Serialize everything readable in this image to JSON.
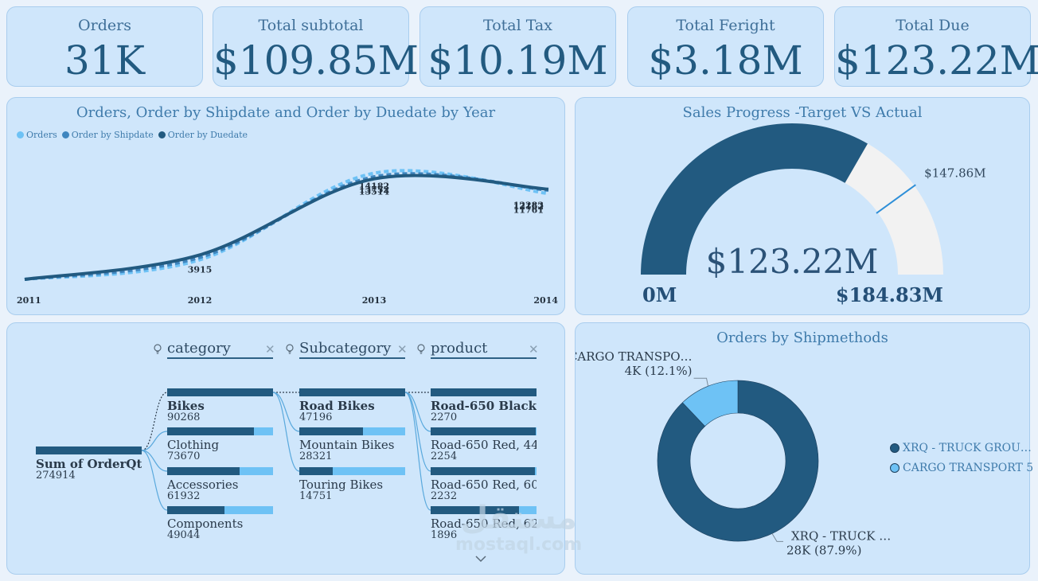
{
  "kpis": [
    {
      "title": "Orders",
      "value": "31K"
    },
    {
      "title": "Total subtotal",
      "value": "$109.85M"
    },
    {
      "title": "Total Tax",
      "value": "$10.19M"
    },
    {
      "title": "Total Feright",
      "value": "$3.18M"
    },
    {
      "title": "Total Due",
      "value": "$123.22M"
    }
  ],
  "line_panel": {
    "title": "Orders, Order by Shipdate and Order by Duedate by Year"
  },
  "gauge_panel": {
    "title": "Sales Progress -Target VS Actual"
  },
  "decomp_panel": {
    "headers": [
      "category",
      "Subcategory",
      "product"
    ],
    "root": {
      "name": "Sum of OrderQty",
      "value": "274914"
    }
  },
  "donut_panel": {
    "title": "Orders by Shipmethods"
  },
  "watermark": {
    "arabic": "مستقل",
    "latin": "mostaql.com"
  },
  "chart_data": [
    {
      "type": "line",
      "title": "Orders, Order by Shipdate and Order by Duedate by Year",
      "x": [
        "2011",
        "2012",
        "2013",
        "2014"
      ],
      "series": [
        {
          "name": "Orders",
          "color": "#6ec2f5",
          "values": [
            1600,
            3915,
            14182,
            11761
          ],
          "labels": [
            "",
            "3915",
            "14182",
            "11761"
          ]
        },
        {
          "name": "Order by Shipdate",
          "color": "#3f86bf",
          "values": [
            1600,
            4200,
            13752,
            12162
          ],
          "labels": [
            "",
            "",
            "13752",
            "12162"
          ]
        },
        {
          "name": "Order by Duedate",
          "color": "#225a80",
          "values": [
            1600,
            4500,
            13514,
            12283
          ],
          "labels": [
            "",
            "",
            "13514",
            "12283"
          ]
        }
      ]
    },
    {
      "type": "gauge",
      "title": "Sales Progress -Target VS Actual",
      "value": 123.22,
      "value_label": "$123.22M",
      "min": 0,
      "min_label": "0M",
      "max": 184.83,
      "max_label": "$184.83M",
      "target": 147.86,
      "target_label": "$147.86M",
      "colors": {
        "fill": "#225a80",
        "track": "#f2f2f2",
        "target": "#2e8fd8"
      }
    },
    {
      "type": "decomposition-tree",
      "root": {
        "name": "Sum of OrderQty",
        "value": 274914
      },
      "levels": [
        {
          "field": "category",
          "items": [
            {
              "name": "Bikes",
              "value": 90268,
              "label": "90268",
              "selected": true
            },
            {
              "name": "Clothing",
              "value": 73670,
              "label": "73670"
            },
            {
              "name": "Accessories",
              "value": 61932,
              "label": "61932"
            },
            {
              "name": "Components",
              "value": 49044,
              "label": "49044"
            }
          ]
        },
        {
          "field": "Subcategory",
          "items": [
            {
              "name": "Road Bikes",
              "value": 47196,
              "label": "47196",
              "selected": true
            },
            {
              "name": "Mountain Bikes",
              "value": 28321,
              "label": "28321"
            },
            {
              "name": "Touring Bikes",
              "value": 14751,
              "label": "14751"
            }
          ]
        },
        {
          "field": "product",
          "items": [
            {
              "name": "Road-650 Black,…",
              "value": 2270,
              "label": "2270",
              "selected": true
            },
            {
              "name": "Road-650 Red, 44",
              "value": 2254,
              "label": "2254"
            },
            {
              "name": "Road-650 Red, 60",
              "value": 2232,
              "label": "2232"
            },
            {
              "name": "Road-650 Red, 62",
              "value": 1896,
              "label": "1896"
            }
          ]
        }
      ]
    },
    {
      "type": "pie",
      "subtype": "donut",
      "title": "Orders by Shipmethods",
      "slices": [
        {
          "name": "XRQ - TRUCK GROU…",
          "short": "XRQ - TRUCK …",
          "value": 87.9,
          "label": "28K (87.9%)",
          "color": "#225a80"
        },
        {
          "name": "CARGO TRANSPORT 5",
          "short": "CARGO TRANSPO…",
          "value": 12.1,
          "label": "4K (12.1%)",
          "color": "#6ec2f5"
        }
      ]
    }
  ]
}
